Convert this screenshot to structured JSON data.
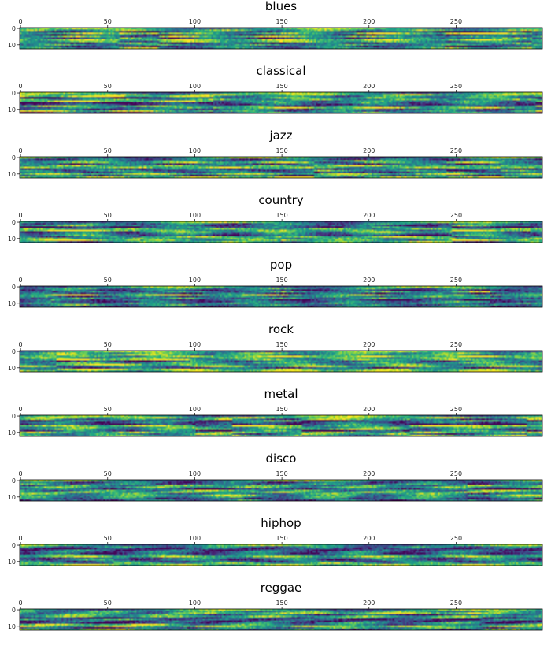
{
  "chart_data": {
    "type": "heatmap",
    "colormap": "viridis",
    "x_range": [
      0,
      299
    ],
    "y_range": [
      0,
      12
    ],
    "xticks": [
      "0",
      "50",
      "100",
      "150",
      "200",
      "250"
    ],
    "yticks": [
      "0",
      "10"
    ],
    "panels": [
      {
        "title": "blues"
      },
      {
        "title": "classical"
      },
      {
        "title": "jazz"
      },
      {
        "title": "country"
      },
      {
        "title": "pop"
      },
      {
        "title": "rock"
      },
      {
        "title": "metal"
      },
      {
        "title": "disco"
      },
      {
        "title": "hiphop"
      },
      {
        "title": "reggae"
      }
    ]
  }
}
